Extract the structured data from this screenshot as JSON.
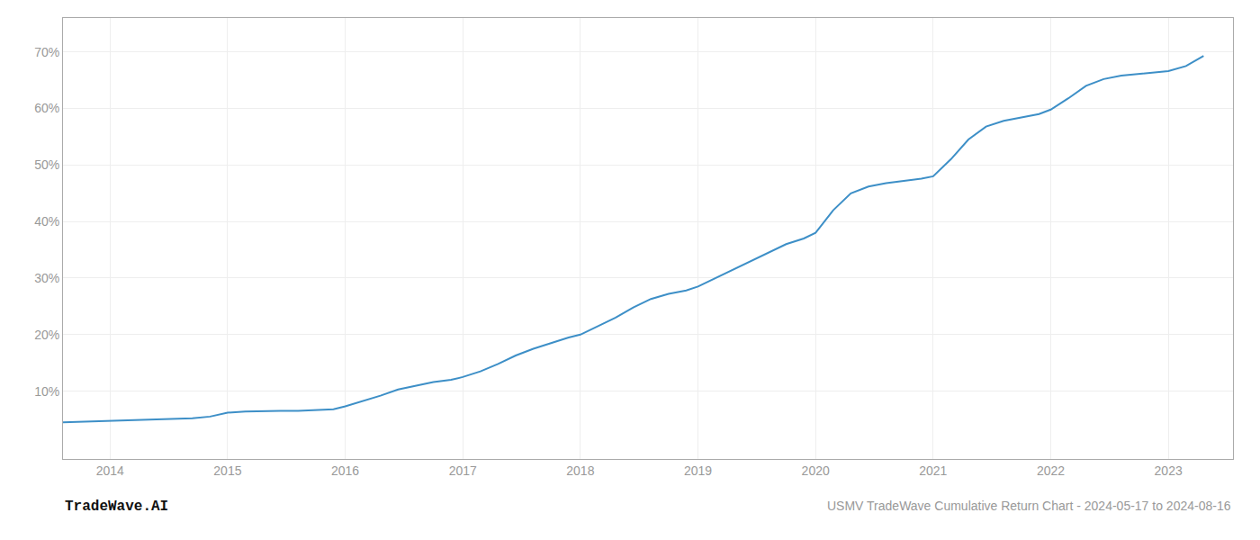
{
  "chart_data": {
    "type": "line",
    "title": "USMV TradeWave Cumulative Return Chart - 2024-05-17 to 2024-08-16",
    "annotations": [
      "TradeWave.AI"
    ],
    "color": "#3d8fc7",
    "x": [
      2013.6,
      2013.75,
      2013.9,
      2014.0,
      2014.1,
      2014.25,
      2014.4,
      2014.55,
      2014.7,
      2014.85,
      2015.0,
      2015.15,
      2015.3,
      2015.45,
      2015.6,
      2015.75,
      2015.9,
      2016.0,
      2016.15,
      2016.3,
      2016.45,
      2016.6,
      2016.75,
      2016.9,
      2017.0,
      2017.15,
      2017.3,
      2017.45,
      2017.6,
      2017.75,
      2017.9,
      2018.0,
      2018.15,
      2018.3,
      2018.45,
      2018.6,
      2018.75,
      2018.9,
      2019.0,
      2019.15,
      2019.3,
      2019.45,
      2019.6,
      2019.75,
      2019.9,
      2020.0,
      2020.15,
      2020.3,
      2020.45,
      2020.6,
      2020.75,
      2020.9,
      2021.0,
      2021.15,
      2021.3,
      2021.45,
      2021.6,
      2021.75,
      2021.9,
      2022.0,
      2022.15,
      2022.3,
      2022.45,
      2022.6,
      2022.75,
      2022.9,
      2023.0,
      2023.15,
      2023.3
    ],
    "values": [
      0.045,
      0.046,
      0.047,
      0.048,
      0.049,
      0.049,
      0.05,
      0.051,
      0.052,
      0.055,
      0.062,
      0.064,
      0.065,
      0.065,
      0.065,
      0.066,
      0.068,
      0.073,
      0.082,
      0.092,
      0.103,
      0.11,
      0.116,
      0.12,
      0.125,
      0.135,
      0.148,
      0.163,
      0.175,
      0.185,
      0.195,
      0.2,
      0.215,
      0.23,
      0.248,
      0.263,
      0.272,
      0.278,
      0.285,
      0.3,
      0.315,
      0.33,
      0.345,
      0.36,
      0.37,
      0.38,
      0.42,
      0.45,
      0.462,
      0.468,
      0.472,
      0.476,
      0.48,
      0.51,
      0.545,
      0.568,
      0.578,
      0.584,
      0.59,
      0.598,
      0.618,
      0.64,
      0.652,
      0.658,
      0.661,
      0.664,
      0.666,
      0.675,
      0.693
    ],
    "xlim": [
      2013.6,
      2023.55
    ],
    "ylim": [
      -0.02,
      0.76
    ],
    "xticks": [
      2014,
      2015,
      2016,
      2017,
      2018,
      2019,
      2020,
      2021,
      2022,
      2023
    ],
    "yticks": [
      {
        "value": 0.1,
        "label": "10%"
      },
      {
        "value": 0.2,
        "label": "20%"
      },
      {
        "value": 0.3,
        "label": "30%"
      },
      {
        "value": 0.4,
        "label": "40%"
      },
      {
        "value": 0.5,
        "label": "50%"
      },
      {
        "value": 0.6,
        "label": "60%"
      },
      {
        "value": 0.7,
        "label": "70%"
      }
    ],
    "grid": true
  }
}
